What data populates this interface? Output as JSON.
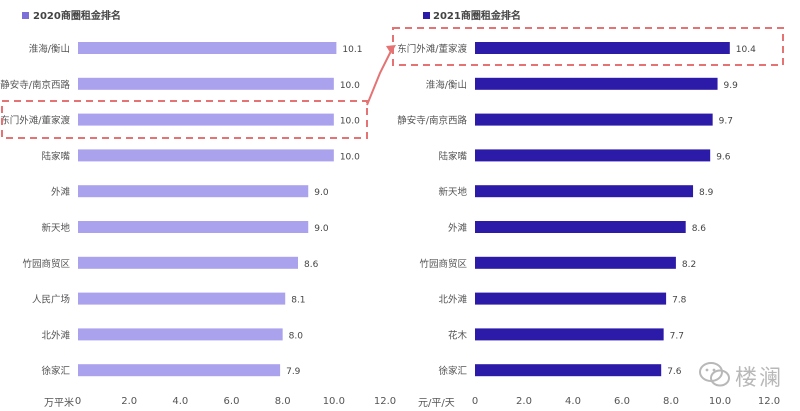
{
  "chart_data": [
    {
      "type": "bar",
      "orientation": "horizontal",
      "title": "2020商圈租金排名",
      "unit_label": "万平米",
      "categories": [
        "淮海/衡山",
        "静安寺/南京西路",
        "东门外滩/董家渡",
        "陆家嘴",
        "外滩",
        "新天地",
        "竹园商贸区",
        "人民广场",
        "北外滩",
        "徐家汇"
      ],
      "values": [
        10.1,
        10.0,
        10.0,
        10.0,
        9.0,
        9.0,
        8.6,
        8.1,
        8.0,
        7.9
      ],
      "value_labels": [
        "10.1",
        "10.0",
        "10.0",
        "10.0",
        "9.0",
        "9.0",
        "8.6",
        "8.1",
        "8.0",
        "7.9"
      ],
      "xlim": [
        0,
        12
      ],
      "xticks": [
        "0",
        "2.0",
        "4.0",
        "6.0",
        "8.0",
        "10.0",
        "12.0"
      ],
      "bar_color": "#aba2ee",
      "highlight_index": 2
    },
    {
      "type": "bar",
      "orientation": "horizontal",
      "title": "2021商圈租金排名",
      "unit_label": "元/平/天",
      "categories": [
        "东门外滩/董家渡",
        "淮海/衡山",
        "静安寺/南京西路",
        "陆家嘴",
        "新天地",
        "外滩",
        "竹园商贸区",
        "北外滩",
        "花木",
        "徐家汇"
      ],
      "values": [
        10.4,
        9.9,
        9.7,
        9.6,
        8.9,
        8.6,
        8.2,
        7.8,
        7.7,
        7.6
      ],
      "value_labels": [
        "10.4",
        "9.9",
        "9.7",
        "9.6",
        "8.9",
        "8.6",
        "8.2",
        "7.8",
        "7.7",
        "7.6"
      ],
      "xlim": [
        0,
        12
      ],
      "xticks": [
        "0",
        "2.0",
        "4.0",
        "6.0",
        "8.0",
        "10.0",
        "12.0"
      ],
      "bar_color": "#2c1aa8",
      "highlight_index": 0
    }
  ],
  "highlight_color": "#e57373",
  "watermark": {
    "text": "楼澜",
    "icon": "wechat-icon"
  }
}
